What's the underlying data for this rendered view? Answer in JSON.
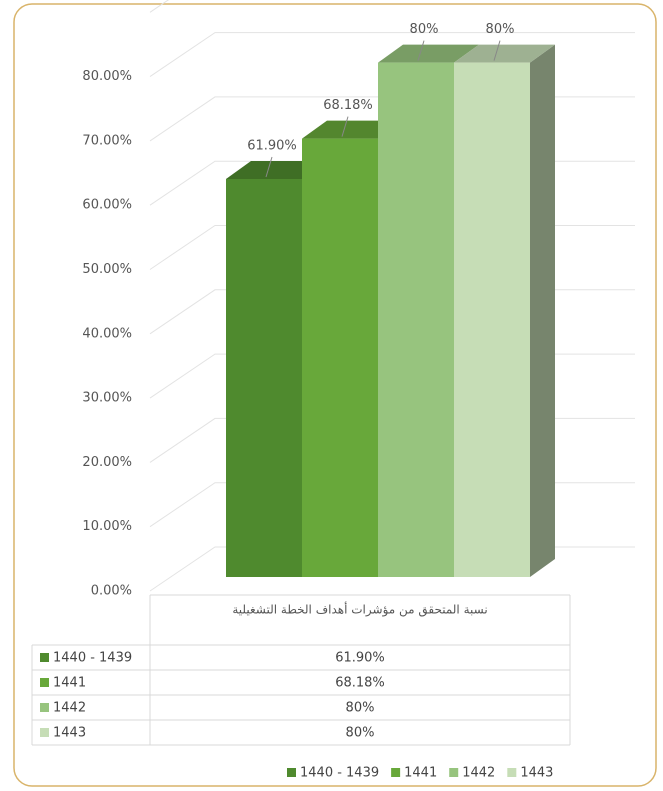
{
  "chart_data": {
    "type": "bar3d",
    "categories": [
      "نسبة المتحقق  من مؤشرات أهداف  الخطة التشغيلية"
    ],
    "series": [
      {
        "name": "1440 - 1439",
        "color": "#4f8a2e",
        "values": [
          61.9
        ],
        "value_labels": [
          "61.90%"
        ]
      },
      {
        "name": "1441",
        "color": "#68a83a",
        "values": [
          68.18
        ],
        "value_labels": [
          "68.18%"
        ]
      },
      {
        "name": "1442",
        "color": "#97c47e",
        "values": [
          80
        ],
        "value_labels": [
          "80%"
        ]
      },
      {
        "name": "1443",
        "color": "#c6ddb6",
        "values": [
          80
        ],
        "value_labels": [
          "80%"
        ]
      }
    ],
    "ylim": [
      0,
      90
    ],
    "yticks": [
      {
        "value": 0,
        "label": "0.00%"
      },
      {
        "value": 10,
        "label": "10.00%"
      },
      {
        "value": 20,
        "label": "20.00%"
      },
      {
        "value": 30,
        "label": "30.00%"
      },
      {
        "value": 40,
        "label": "40.00%"
      },
      {
        "value": 50,
        "label": "50.00%"
      },
      {
        "value": 60,
        "label": "60.00%"
      },
      {
        "value": 70,
        "label": "70.00%"
      },
      {
        "value": 80,
        "label": "80.00%"
      }
    ],
    "grid": true,
    "legend": "bottom"
  }
}
